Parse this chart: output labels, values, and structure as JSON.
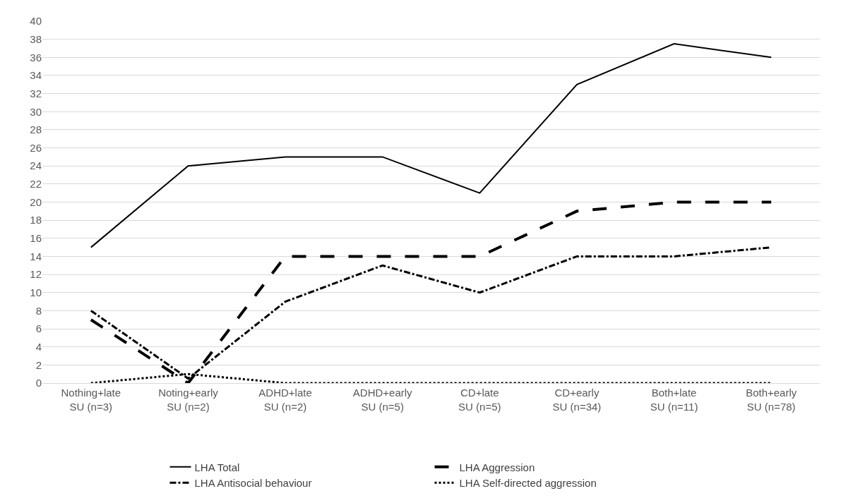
{
  "chart_data": {
    "type": "line",
    "categories": [
      "Nothing+late SU (n=3)",
      "Noting+early SU (n=2)",
      "ADHD+late SU (n=2)",
      "ADHD+early SU (n=5)",
      "CD+late SU (n=5)",
      "CD+early SU (n=34)",
      "Both+late SU (n=11)",
      "Both+early SU (n=78)"
    ],
    "series": [
      {
        "name": "LHA Total",
        "color": "#000000",
        "line_style": "solid",
        "values": [
          15,
          24,
          25,
          25,
          21,
          33,
          37.5,
          36
        ]
      },
      {
        "name": "LHA Aggression",
        "color": "#000000",
        "line_style": "longdash",
        "values": [
          7,
          0,
          14,
          14,
          14,
          19,
          20,
          20
        ]
      },
      {
        "name": "LHA Antisocial behaviour",
        "color": "#000000",
        "line_style": "dashdot",
        "values": [
          8,
          0.5,
          9,
          13,
          10,
          14,
          14,
          15
        ]
      },
      {
        "name": "LHA Self-directed aggression",
        "color": "#000000",
        "line_style": "dotted",
        "values": [
          0,
          1,
          0,
          0,
          0,
          0,
          0,
          0
        ]
      }
    ],
    "ylim": [
      0,
      40
    ],
    "yticks": [
      0,
      2,
      4,
      6,
      8,
      10,
      12,
      14,
      16,
      18,
      20,
      22,
      24,
      26,
      28,
      30,
      32,
      34,
      36,
      38,
      40
    ],
    "grid": "y",
    "legend": "bottom",
    "marker": "none"
  }
}
